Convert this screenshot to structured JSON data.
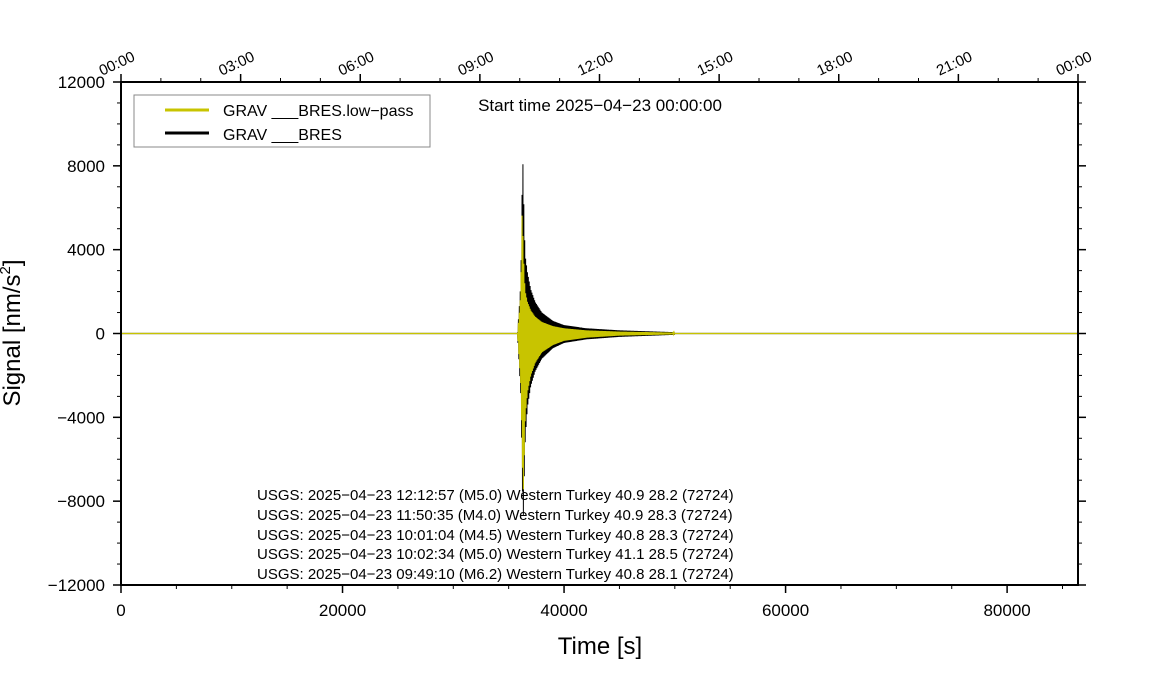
{
  "chart_data": {
    "type": "line",
    "xlabel": "Time [s]",
    "ylabel": "Signal [nm/s",
    "ylabel_sup": "2",
    "ylabel_tail": "]",
    "xlim": [
      0,
      86400
    ],
    "ylim": [
      -12000,
      12000
    ],
    "x_ticks": [
      0,
      20000,
      40000,
      60000,
      80000
    ],
    "x_tick_labels": [
      "0",
      "20000",
      "40000",
      "60000",
      "80000"
    ],
    "y_ticks": [
      -12000,
      -8000,
      -4000,
      0,
      4000,
      8000,
      12000
    ],
    "y_tick_labels": [
      "−12000",
      "−8000",
      "−4000",
      "0",
      "4000",
      "8000",
      "12000"
    ],
    "top_axis_ticks": [
      0,
      10800,
      21600,
      32400,
      43200,
      54000,
      64800,
      75600,
      86400
    ],
    "top_axis_labels": [
      "00:00",
      "03:00",
      "06:00",
      "09:00",
      "12:00",
      "15:00",
      "18:00",
      "21:00",
      "00:00"
    ],
    "annotation_start": "Start time 2025−04−23 00:00:00",
    "legend_position": "top-left",
    "legend": [
      {
        "name": "GRAV ___BRES.low−pass",
        "color": "#c8c400"
      },
      {
        "name": "GRAV ___BRES",
        "color": "#000000"
      }
    ],
    "events": [
      "USGS: 2025−04−23 12:12:57 (M5.0) Western Turkey 40.9 28.2 (72724)",
      "USGS: 2025−04−23 11:50:35 (M4.0) Western Turkey 40.9 28.3 (72724)",
      "USGS: 2025−04−23 10:01:04 (M4.5) Western Turkey 40.8 28.3 (72724)",
      "USGS: 2025−04−23 10:02:34 (M5.0) Western Turkey 41.1 28.5 (72724)",
      "USGS: 2025−04−23 09:49:10 (M6.2) Western Turkey 40.8 28.1 (72724)"
    ],
    "series": [
      {
        "name": "GRAV ___BRES",
        "color": "#000000",
        "envelope": {
          "x": [
            0,
            35800,
            35950,
            36100,
            36200,
            36300,
            36400,
            36500,
            36700,
            37000,
            37400,
            38000,
            39000,
            40000,
            42000,
            45000,
            50000,
            86400
          ],
          "upper": [
            30,
            60,
            1200,
            2500,
            6500,
            8300,
            5200,
            3700,
            2900,
            2100,
            1500,
            1000,
            600,
            400,
            250,
            150,
            60,
            30
          ],
          "lower": [
            -30,
            -60,
            -1500,
            -3000,
            -6000,
            -9300,
            -7000,
            -5000,
            -3500,
            -2500,
            -1800,
            -1200,
            -700,
            -450,
            -280,
            -160,
            -60,
            -30
          ]
        }
      },
      {
        "name": "GRAV ___BRES.low−pass",
        "color": "#c8c400",
        "envelope": {
          "x": [
            0,
            35800,
            35950,
            36100,
            36200,
            36300,
            36400,
            36500,
            36700,
            37000,
            37400,
            38000,
            39000,
            40000,
            42000,
            45000,
            50000,
            86400
          ],
          "upper": [
            20,
            40,
            900,
            2000,
            5700,
            4500,
            2800,
            2000,
            1500,
            1100,
            800,
            550,
            350,
            250,
            150,
            90,
            40,
            20
          ],
          "lower": [
            -20,
            -40,
            -1200,
            -2500,
            -5000,
            -8000,
            -6000,
            -4000,
            -2800,
            -2000,
            -1400,
            -900,
            -550,
            -350,
            -200,
            -100,
            -40,
            -20
          ]
        }
      }
    ]
  }
}
